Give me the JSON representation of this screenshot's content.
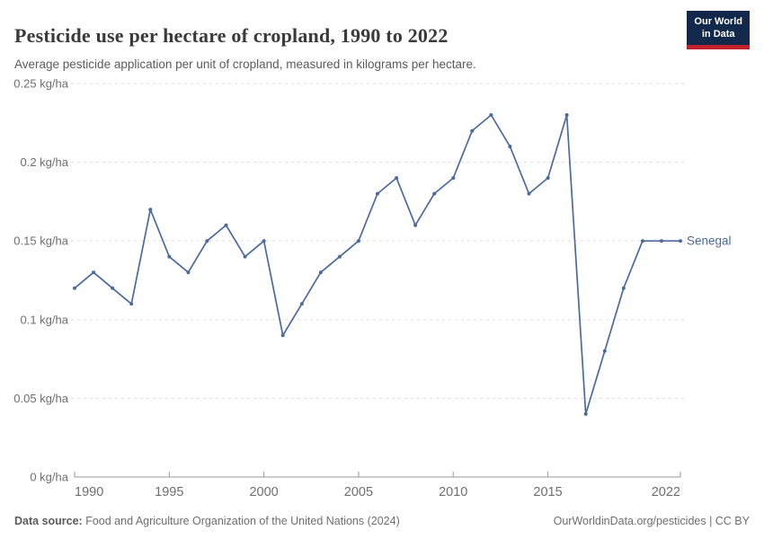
{
  "header": {
    "title": "Pesticide use per hectare of cropland, 1990 to 2022",
    "subtitle": "Average pesticide application per unit of cropland, measured in kilograms per hectare."
  },
  "logo": {
    "line1": "Our World",
    "line2": "in Data"
  },
  "chart_data": {
    "type": "line",
    "title": "Pesticide use per hectare of cropland, 1990 to 2022",
    "ylabel": "kg/ha",
    "xlabel": "",
    "ylim": [
      0,
      0.25
    ],
    "grid": "horizontal-dashed",
    "legend_position": "end-of-line-label",
    "x": [
      1990,
      1991,
      1992,
      1993,
      1994,
      1995,
      1996,
      1997,
      1998,
      1999,
      2000,
      2001,
      2002,
      2003,
      2004,
      2005,
      2006,
      2007,
      2008,
      2009,
      2010,
      2011,
      2012,
      2013,
      2014,
      2015,
      2016,
      2017,
      2018,
      2019,
      2020,
      2021,
      2022
    ],
    "series": [
      {
        "name": "Senegal",
        "values": [
          0.12,
          0.13,
          0.12,
          0.11,
          0.17,
          0.14,
          0.13,
          0.15,
          0.16,
          0.14,
          0.15,
          0.09,
          0.11,
          0.13,
          0.14,
          0.15,
          0.18,
          0.19,
          0.16,
          0.18,
          0.19,
          0.22,
          0.23,
          0.21,
          0.18,
          0.19,
          0.23,
          0.04,
          0.08,
          0.12,
          0.15,
          0.15,
          0.15
        ]
      }
    ],
    "yticks": [
      {
        "value": 0,
        "label": "0 kg/ha"
      },
      {
        "value": 0.05,
        "label": "0.05 kg/ha"
      },
      {
        "value": 0.1,
        "label": "0.1 kg/ha"
      },
      {
        "value": 0.15,
        "label": "0.15 kg/ha"
      },
      {
        "value": 0.2,
        "label": "0.2 kg/ha"
      },
      {
        "value": 0.25,
        "label": "0.25 kg/ha"
      }
    ],
    "xticks": [
      1990,
      1995,
      2000,
      2005,
      2010,
      2015,
      2022
    ]
  },
  "colors": {
    "line": "#4c6a9c",
    "grid": "#dedede",
    "axis": "#9a9a9a",
    "tick_text": "#6e6e6e",
    "logo_bg": "#13294b",
    "logo_bar": "#c5202e"
  },
  "footer": {
    "datasource_label": "Data source:",
    "datasource": "Food and Agriculture Organization of the United Nations (2024)",
    "credit": "OurWorldinData.org/pesticides | CC BY"
  }
}
